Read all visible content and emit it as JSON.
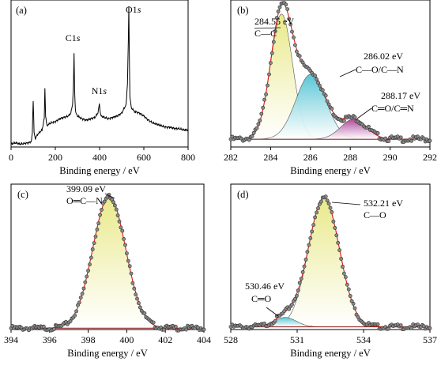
{
  "chart_data": [
    {
      "panel": "(a)",
      "type": "line",
      "xlabel": "Binding energy / eV",
      "xlim": [
        0,
        800
      ],
      "xticks": [
        0,
        200,
        400,
        600,
        800
      ],
      "peak_labels": [
        {
          "text": "C1s",
          "x": 284.6
        },
        {
          "text": "N1s",
          "x": 399.1
        },
        {
          "text": "O1s",
          "x": 532.2
        }
      ],
      "x": [
        0,
        20,
        40,
        60,
        80,
        92,
        96,
        100,
        104,
        110,
        120,
        140,
        150,
        153,
        156,
        162,
        170,
        180,
        200,
        220,
        240,
        260,
        270,
        278,
        282,
        284.6,
        287,
        291,
        300,
        320,
        340,
        360,
        380,
        392,
        396,
        399,
        402,
        406,
        420,
        440,
        460,
        480,
        500,
        510,
        520,
        526,
        530,
        532.2,
        534,
        537,
        545,
        560,
        580,
        600,
        620,
        640,
        660,
        680,
        700,
        720,
        740,
        760,
        780,
        800
      ],
      "y": [
        0.02,
        0.03,
        0.02,
        0.025,
        0.03,
        0.04,
        0.1,
        0.33,
        0.1,
        0.06,
        0.09,
        0.12,
        0.2,
        0.41,
        0.22,
        0.15,
        0.16,
        0.17,
        0.18,
        0.2,
        0.21,
        0.22,
        0.24,
        0.3,
        0.45,
        0.67,
        0.4,
        0.25,
        0.22,
        0.2,
        0.19,
        0.2,
        0.21,
        0.24,
        0.27,
        0.31,
        0.26,
        0.22,
        0.21,
        0.2,
        0.21,
        0.22,
        0.24,
        0.27,
        0.3,
        0.45,
        0.75,
        0.99,
        0.72,
        0.35,
        0.27,
        0.25,
        0.24,
        0.22,
        0.19,
        0.17,
        0.16,
        0.15,
        0.14,
        0.14,
        0.13,
        0.13,
        0.12,
        0.12
      ]
    },
    {
      "panel": "(b)",
      "type": "scatter+area",
      "xlabel": "Binding energy / eV",
      "xlim": [
        282,
        292
      ],
      "xticks": [
        282,
        284,
        286,
        288,
        290,
        292
      ],
      "background": 0.05,
      "components": [
        {
          "label": "C—C",
          "center_text": "284.55 eV",
          "center": 284.55,
          "amplitude": 0.81,
          "sigma": 0.55,
          "color": "#e9e98a"
        },
        {
          "label": "C—O/C—N",
          "center_text": "286.02 eV",
          "center": 286.02,
          "amplitude": 0.42,
          "sigma": 0.75,
          "color": "#59c6d6"
        },
        {
          "label": "C═O/C═N",
          "center_text": "288.17 eV",
          "center": 288.17,
          "amplitude": 0.13,
          "sigma": 0.65,
          "color": "#b0489c"
        }
      ]
    },
    {
      "panel": "(c)",
      "type": "scatter+area",
      "xlabel": "Binding energy / eV",
      "xlim": [
        394,
        404
      ],
      "xticks": [
        394,
        396,
        398,
        400,
        402,
        404
      ],
      "background": 0.01,
      "components": [
        {
          "label": "O═C—N",
          "center_text": "399.09 eV",
          "center": 399.09,
          "amplitude": 0.98,
          "sigma": 0.85,
          "color": "#e9e98a"
        }
      ]
    },
    {
      "panel": "(d)",
      "type": "scatter+area",
      "xlabel": "Binding energy / eV",
      "xlim": [
        528,
        537
      ],
      "xticks": [
        528,
        531,
        534,
        537
      ],
      "background": 0.02,
      "components": [
        {
          "label": "C—O",
          "center_text": "532.21 eV",
          "center": 532.21,
          "amplitude": 0.96,
          "sigma": 0.7,
          "color": "#e9e98a"
        },
        {
          "label": "C═O",
          "center_text": "530.46 eV",
          "center": 530.46,
          "amplitude": 0.07,
          "sigma": 0.5,
          "color": "#59c6d6"
        }
      ]
    }
  ]
}
